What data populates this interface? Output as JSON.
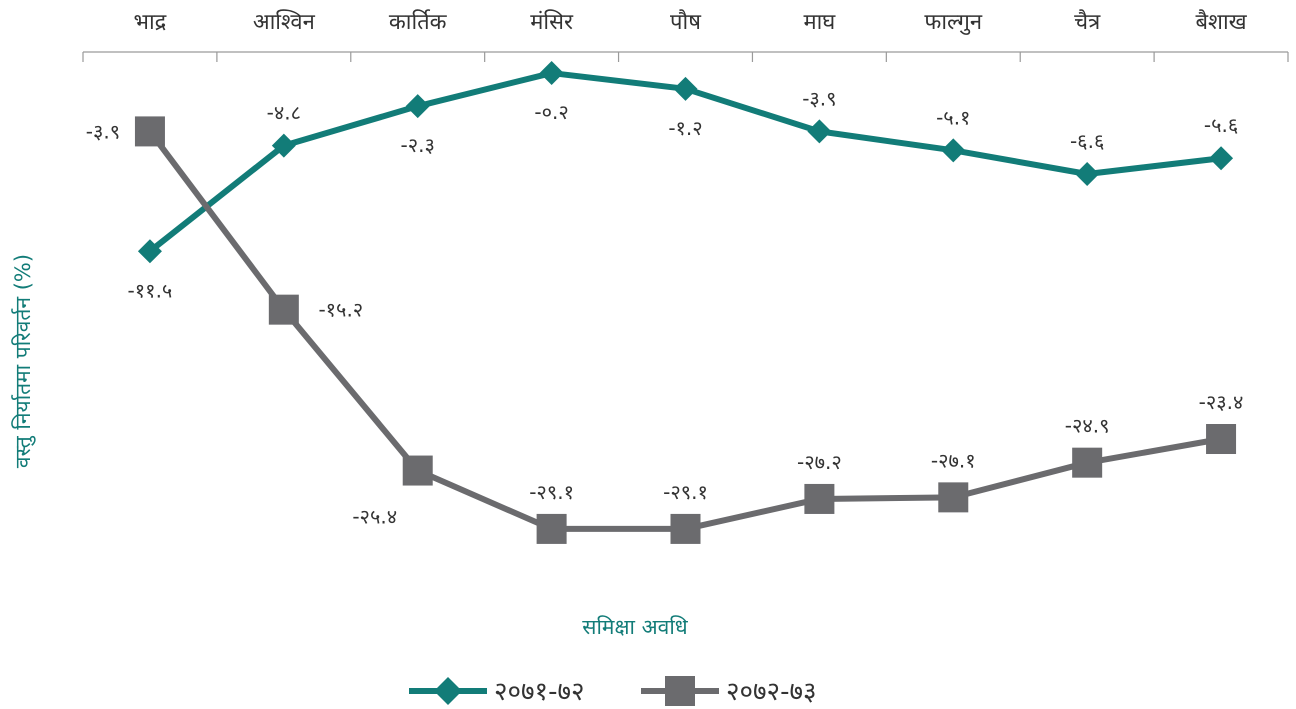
{
  "chart_data": {
    "type": "line",
    "title": "",
    "xlabel": "समिक्षा अवधि",
    "ylabel": "वस्तु निर्यातमा परिवर्तन (%)",
    "categories": [
      "भाद्र",
      "आश्विन",
      "कार्तिक",
      "मंसिर",
      "पौष",
      "माघ",
      "फाल्गुन",
      "चैत्र",
      "बैशाख"
    ],
    "x_axis_position": "top",
    "ylim": [
      -30.5,
      0.5
    ],
    "grid": false,
    "legend_position": "bottom",
    "series": [
      {
        "name": "२०७१-७२",
        "values": [
          -11.5,
          -4.8,
          -2.3,
          -0.2,
          -1.2,
          -3.9,
          -5.1,
          -6.6,
          -5.6
        ],
        "labels": [
          "-११.५",
          "-४.८",
          "-२.३",
          "-०.२",
          "-१.२",
          "-३.९",
          "-५.१",
          "-६.६",
          "-५.६"
        ],
        "color": "#127c78",
        "marker": "diamond"
      },
      {
        "name": "२०७२-७३",
        "values": [
          -3.9,
          -15.2,
          -25.4,
          -29.1,
          -29.1,
          -27.2,
          -27.1,
          -24.9,
          -23.4
        ],
        "labels": [
          "-३.९",
          "-१५.२",
          "-२५.४",
          "-२९.१",
          "-२९.१",
          "-२७.२",
          "-२७.१",
          "-२४.९",
          "-२३.४"
        ],
        "color": "#6b6b6e",
        "marker": "square"
      }
    ],
    "colors": {
      "axis": "#9a9a9a",
      "title": "#127c78",
      "text": "#333333"
    }
  }
}
